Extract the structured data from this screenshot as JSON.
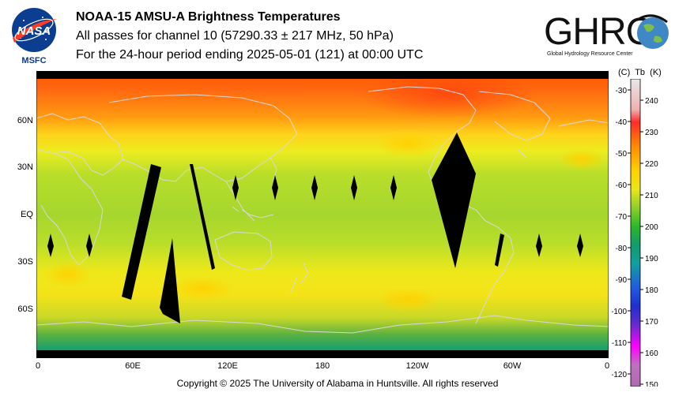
{
  "header": {
    "title_line1": "NOAA-15 AMSU-A Brightness Temperatures",
    "title_line2": "All passes for channel 10 (57290.33 ± 217 MHz, 50 hPa)",
    "title_line3": "For the 24-hour period ending 2025-05-01 (121) at 00:00 UTC"
  },
  "logos": {
    "nasa_text": "NASA",
    "nasa_sub": "MSFC",
    "ghrc_text": "GHRC",
    "ghrc_sub": "Global Hydrology Resource Center"
  },
  "map": {
    "lat_labels": [
      "60N",
      "30N",
      "EQ",
      "30S",
      "60S"
    ],
    "lon_labels": [
      "0",
      "60E",
      "120E",
      "180",
      "120W",
      "60W",
      "0"
    ]
  },
  "colorbar": {
    "unit_c": "(C)",
    "unit_tb": "Tb",
    "unit_k": "(K)",
    "celsius_ticks": [
      "-30",
      "-40",
      "-50",
      "-60",
      "-70",
      "-80",
      "-90",
      "-100",
      "-110",
      "-120"
    ],
    "kelvin_ticks": [
      "240",
      "230",
      "220",
      "210",
      "200",
      "190",
      "180",
      "170",
      "160",
      "150"
    ],
    "colors": [
      "#e8e8e8",
      "#ff2a2a",
      "#ff8c00",
      "#ffd200",
      "#c8e21a",
      "#2ab82a",
      "#139a6c",
      "#1f2fd0",
      "#ff00ff",
      "#b06ab0"
    ]
  },
  "footer": {
    "copyright": "Copyright © 2025 The University of Alabama in Huntsville.  All rights reserved"
  }
}
